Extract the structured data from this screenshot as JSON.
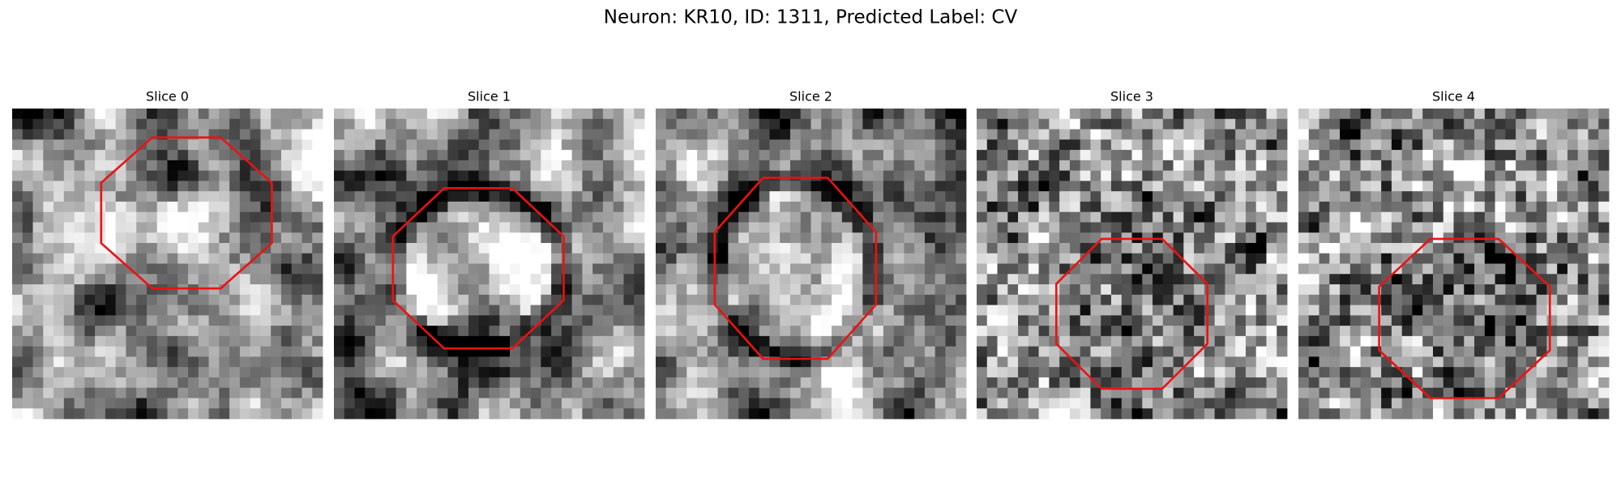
{
  "title": "Neuron: KR10, ID: 1311, Predicted Label: CV",
  "panels": [
    {
      "title": "Slice 0"
    },
    {
      "title": "Slice 1"
    },
    {
      "title": "Slice 2"
    },
    {
      "title": "Slice 3"
    },
    {
      "title": "Slice 4"
    }
  ]
}
